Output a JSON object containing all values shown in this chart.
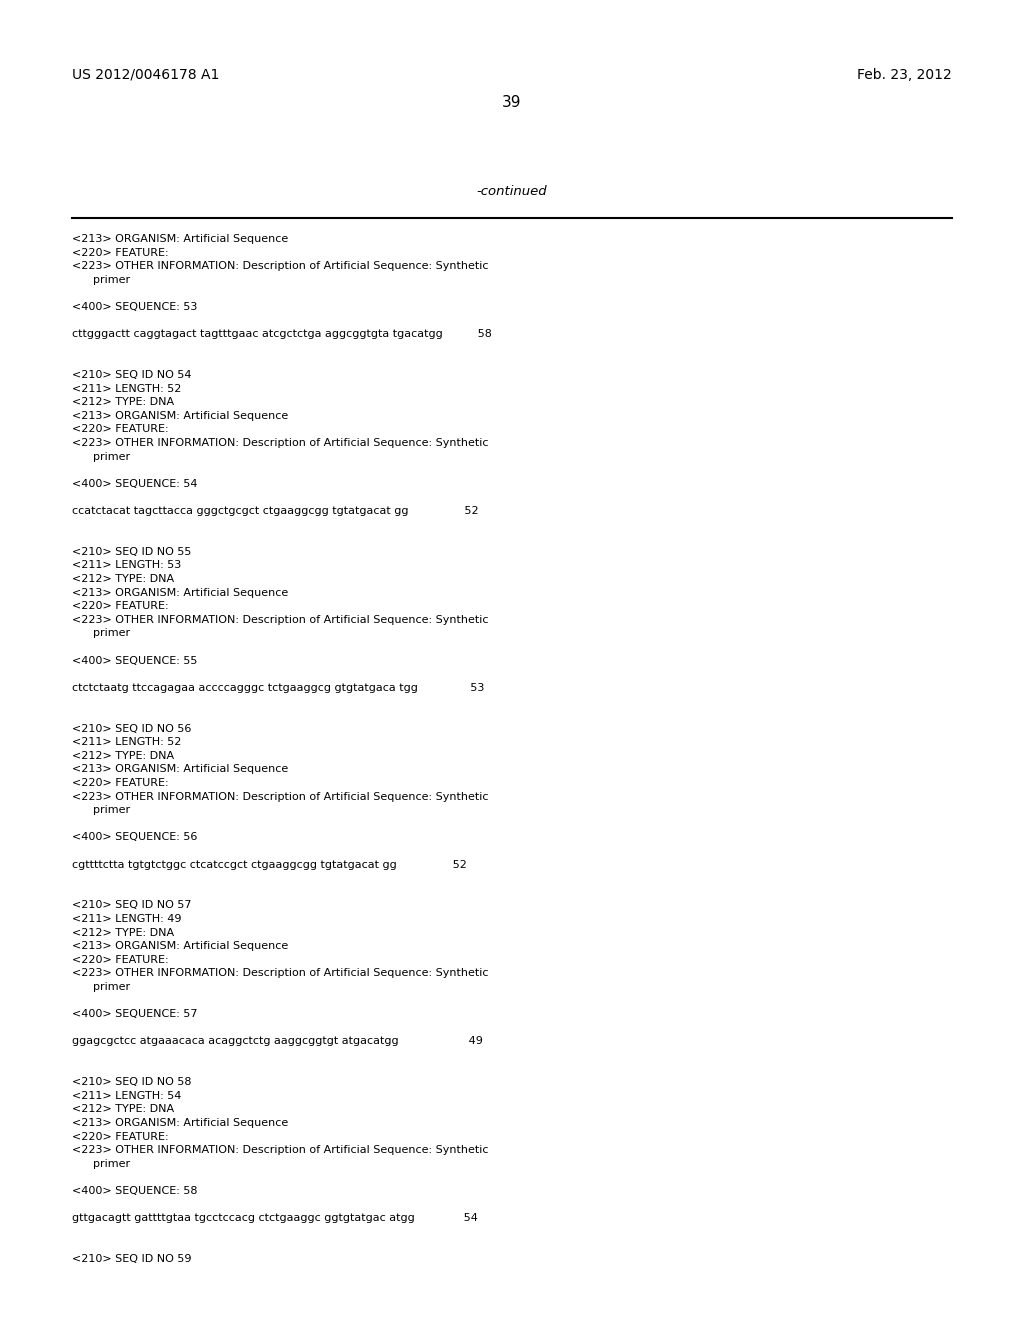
{
  "background_color": "#ffffff",
  "header_left": "US 2012/0046178 A1",
  "header_right": "Feb. 23, 2012",
  "page_number": "39",
  "continued_label": "-continued",
  "mono_size": 8.0,
  "header_size": 10.0,
  "page_num_size": 11.0,
  "continued_size": 9.5,
  "lines": [
    "<213> ORGANISM: Artificial Sequence",
    "<220> FEATURE:",
    "<223> OTHER INFORMATION: Description of Artificial Sequence: Synthetic",
    "      primer",
    "",
    "<400> SEQUENCE: 53",
    "",
    "cttgggactt caggtagact tagtttgaac atcgctctga aggcggtgta tgacatgg          58",
    "",
    "",
    "<210> SEQ ID NO 54",
    "<211> LENGTH: 52",
    "<212> TYPE: DNA",
    "<213> ORGANISM: Artificial Sequence",
    "<220> FEATURE:",
    "<223> OTHER INFORMATION: Description of Artificial Sequence: Synthetic",
    "      primer",
    "",
    "<400> SEQUENCE: 54",
    "",
    "ccatctacat tagcttacca gggctgcgct ctgaaggcgg tgtatgacat gg                52",
    "",
    "",
    "<210> SEQ ID NO 55",
    "<211> LENGTH: 53",
    "<212> TYPE: DNA",
    "<213> ORGANISM: Artificial Sequence",
    "<220> FEATURE:",
    "<223> OTHER INFORMATION: Description of Artificial Sequence: Synthetic",
    "      primer",
    "",
    "<400> SEQUENCE: 55",
    "",
    "ctctctaatg ttccagagaa accccagggc tctgaaggcg gtgtatgaca tgg               53",
    "",
    "",
    "<210> SEQ ID NO 56",
    "<211> LENGTH: 52",
    "<212> TYPE: DNA",
    "<213> ORGANISM: Artificial Sequence",
    "<220> FEATURE:",
    "<223> OTHER INFORMATION: Description of Artificial Sequence: Synthetic",
    "      primer",
    "",
    "<400> SEQUENCE: 56",
    "",
    "cgttttctta tgtgtctggc ctcatccgct ctgaaggcgg tgtatgacat gg                52",
    "",
    "",
    "<210> SEQ ID NO 57",
    "<211> LENGTH: 49",
    "<212> TYPE: DNA",
    "<213> ORGANISM: Artificial Sequence",
    "<220> FEATURE:",
    "<223> OTHER INFORMATION: Description of Artificial Sequence: Synthetic",
    "      primer",
    "",
    "<400> SEQUENCE: 57",
    "",
    "ggagcgctcc atgaaacaca acaggctctg aaggcggtgt atgacatgg                    49",
    "",
    "",
    "<210> SEQ ID NO 58",
    "<211> LENGTH: 54",
    "<212> TYPE: DNA",
    "<213> ORGANISM: Artificial Sequence",
    "<220> FEATURE:",
    "<223> OTHER INFORMATION: Description of Artificial Sequence: Synthetic",
    "      primer",
    "",
    "<400> SEQUENCE: 58",
    "",
    "gttgacagtt gattttgtaa tgcctccacg ctctgaaggc ggtgtatgac atgg              54",
    "",
    "",
    "<210> SEQ ID NO 59"
  ]
}
